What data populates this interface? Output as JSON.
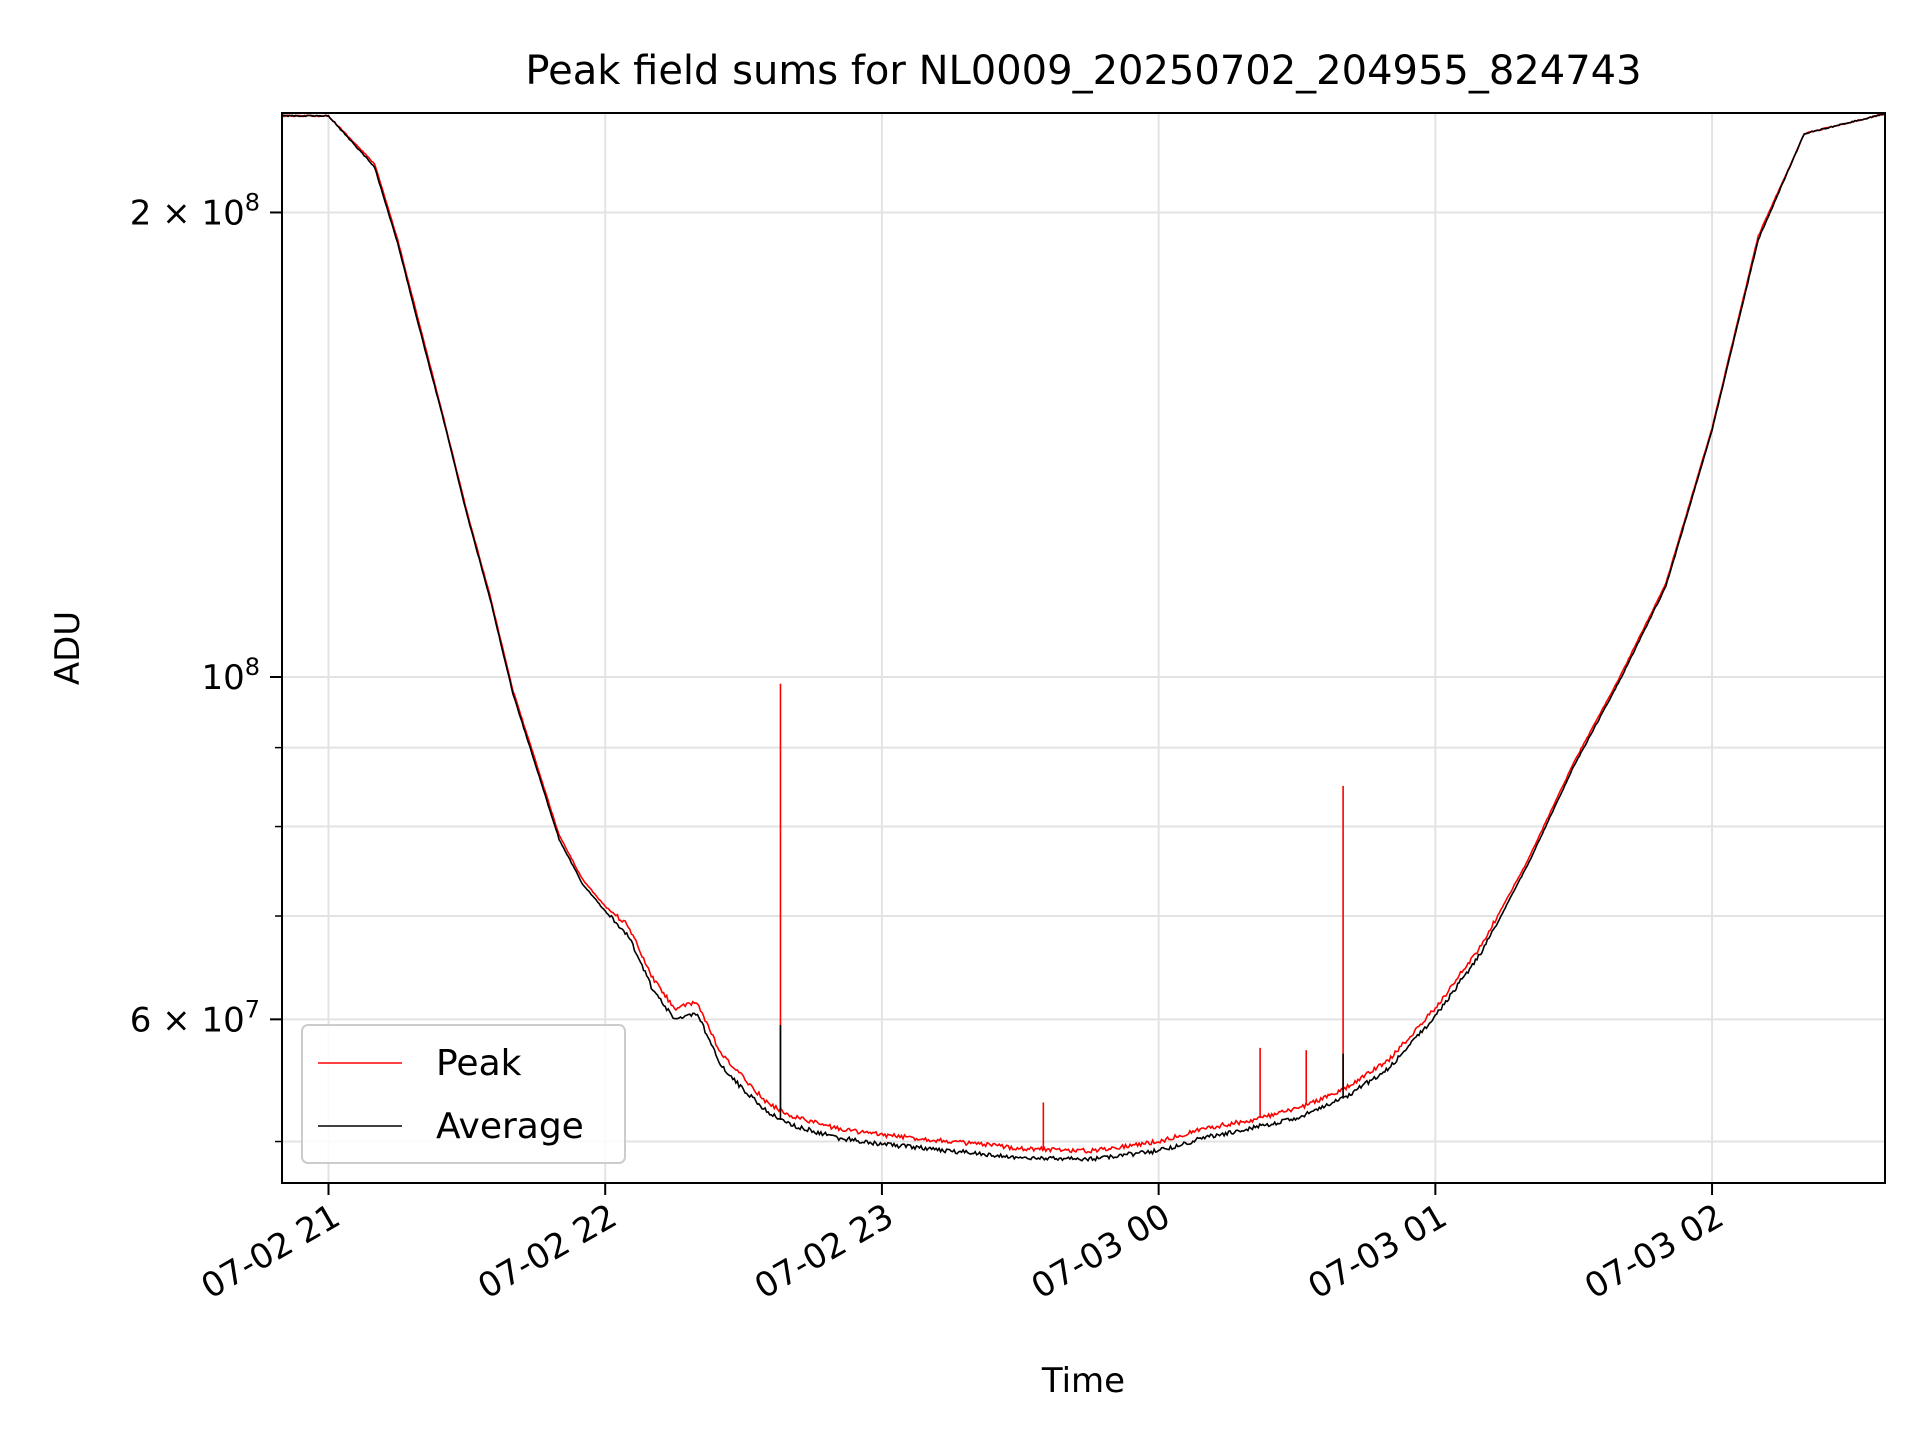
{
  "chart_data": {
    "type": "line",
    "title": "Peak field sums for NL0009_20250702_204955_824743",
    "xlabel": "Time",
    "ylabel": "ADU",
    "yscale": "log",
    "ylim": [
      47000000,
      232000000
    ],
    "xlim": [
      "2025-07-02 20:49:55",
      "2025-07-03 02:37:30"
    ],
    "grid": true,
    "legend": "lower-left",
    "x_ticks": [
      {
        "t": "2025-07-02 21:00",
        "label": "07-02 21"
      },
      {
        "t": "2025-07-02 22:00",
        "label": "07-02 22"
      },
      {
        "t": "2025-07-02 23:00",
        "label": "07-02 23"
      },
      {
        "t": "2025-07-03 00:00",
        "label": "07-03 00"
      },
      {
        "t": "2025-07-03 01:00",
        "label": "07-03 01"
      },
      {
        "t": "2025-07-03 02:00",
        "label": "07-03 02"
      }
    ],
    "y_ticks": [
      {
        "value": 200000000,
        "label": "2 × 10^8"
      },
      {
        "value": 100000000,
        "label": "10^8"
      },
      {
        "value": 60000000,
        "label": "6 × 10^7"
      }
    ],
    "y_minor_ticks": [
      50000000,
      70000000,
      80000000,
      90000000
    ],
    "series": [
      {
        "name": "Peak",
        "color": "#ff0000",
        "x": [
          "2025-07-02 21:00",
          "2025-07-02 21:10",
          "2025-07-02 21:15",
          "2025-07-02 21:20",
          "2025-07-02 21:25",
          "2025-07-02 21:30",
          "2025-07-02 21:35",
          "2025-07-02 21:40",
          "2025-07-02 21:45",
          "2025-07-02 21:50",
          "2025-07-02 21:55",
          "2025-07-02 22:00",
          "2025-07-02 22:05",
          "2025-07-02 22:10",
          "2025-07-02 22:15",
          "2025-07-02 22:20",
          "2025-07-02 22:25",
          "2025-07-02 22:30",
          "2025-07-02 22:35",
          "2025-07-02 22:40",
          "2025-07-02 22:50",
          "2025-07-02 23:00",
          "2025-07-02 23:15",
          "2025-07-02 23:30",
          "2025-07-02 23:45",
          "2025-07-03 00:00",
          "2025-07-03 00:10",
          "2025-07-03 00:20",
          "2025-07-03 00:30",
          "2025-07-03 00:40",
          "2025-07-03 00:50",
          "2025-07-03 01:00",
          "2025-07-03 01:10",
          "2025-07-03 01:20",
          "2025-07-03 01:30",
          "2025-07-03 01:40",
          "2025-07-03 01:50",
          "2025-07-03 02:00",
          "2025-07-03 02:10",
          "2025-07-03 02:20"
        ],
        "values": [
          231000000,
          215000000,
          192000000,
          168000000,
          147000000,
          128000000,
          113000000,
          98000000,
          88000000,
          79000000,
          74000000,
          71000000,
          69000000,
          64000000,
          61000000,
          61500000,
          57000000,
          55000000,
          53000000,
          52000000,
          51000000,
          50500000,
          50000000,
          49500000,
          49300000,
          50000000,
          51000000,
          51600000,
          52500000,
          54000000,
          56500000,
          61000000,
          67000000,
          76000000,
          88000000,
          100000000,
          115000000,
          145000000,
          193000000,
          225000000
        ],
        "spikes": [
          {
            "t": "2025-07-02 22:38",
            "value": 99000000
          },
          {
            "t": "2025-07-02 23:35",
            "value": 53000000
          },
          {
            "t": "2025-07-03 00:22",
            "value": 57500000
          },
          {
            "t": "2025-07-03 00:32",
            "value": 57300000
          },
          {
            "t": "2025-07-03 00:40",
            "value": 85000000
          }
        ]
      },
      {
        "name": "Average",
        "color": "#000000",
        "x": [
          "2025-07-02 21:00",
          "2025-07-02 21:10",
          "2025-07-02 21:15",
          "2025-07-02 21:20",
          "2025-07-02 21:25",
          "2025-07-02 21:30",
          "2025-07-02 21:35",
          "2025-07-02 21:40",
          "2025-07-02 21:45",
          "2025-07-02 21:50",
          "2025-07-02 21:55",
          "2025-07-02 22:00",
          "2025-07-02 22:05",
          "2025-07-02 22:10",
          "2025-07-02 22:15",
          "2025-07-02 22:20",
          "2025-07-02 22:25",
          "2025-07-02 22:30",
          "2025-07-02 22:35",
          "2025-07-02 22:40",
          "2025-07-02 22:50",
          "2025-07-02 23:00",
          "2025-07-02 23:15",
          "2025-07-02 23:30",
          "2025-07-02 23:45",
          "2025-07-03 00:00",
          "2025-07-03 00:10",
          "2025-07-03 00:20",
          "2025-07-03 00:30",
          "2025-07-03 00:40",
          "2025-07-03 00:50",
          "2025-07-03 01:00",
          "2025-07-03 01:10",
          "2025-07-03 01:20",
          "2025-07-03 01:30",
          "2025-07-03 01:40",
          "2025-07-03 01:50",
          "2025-07-03 02:00",
          "2025-07-03 02:10",
          "2025-07-03 02:20"
        ],
        "values": [
          231000000,
          214000000,
          191000000,
          167000000,
          146500000,
          127500000,
          112500000,
          97500000,
          87500000,
          78500000,
          73500000,
          70500000,
          68000000,
          63000000,
          60000000,
          60500000,
          56000000,
          54000000,
          52300000,
          51300000,
          50300000,
          49800000,
          49300000,
          48800000,
          48700000,
          49300000,
          50300000,
          51000000,
          51800000,
          53300000,
          55800000,
          60300000,
          66300000,
          75500000,
          87500000,
          99500000,
          114500000,
          144500000,
          192000000,
          225000000
        ],
        "spikes": [
          {
            "t": "2025-07-02 22:38",
            "value": 59500000
          },
          {
            "t": "2025-07-03 00:40",
            "value": 57000000
          }
        ]
      }
    ]
  }
}
